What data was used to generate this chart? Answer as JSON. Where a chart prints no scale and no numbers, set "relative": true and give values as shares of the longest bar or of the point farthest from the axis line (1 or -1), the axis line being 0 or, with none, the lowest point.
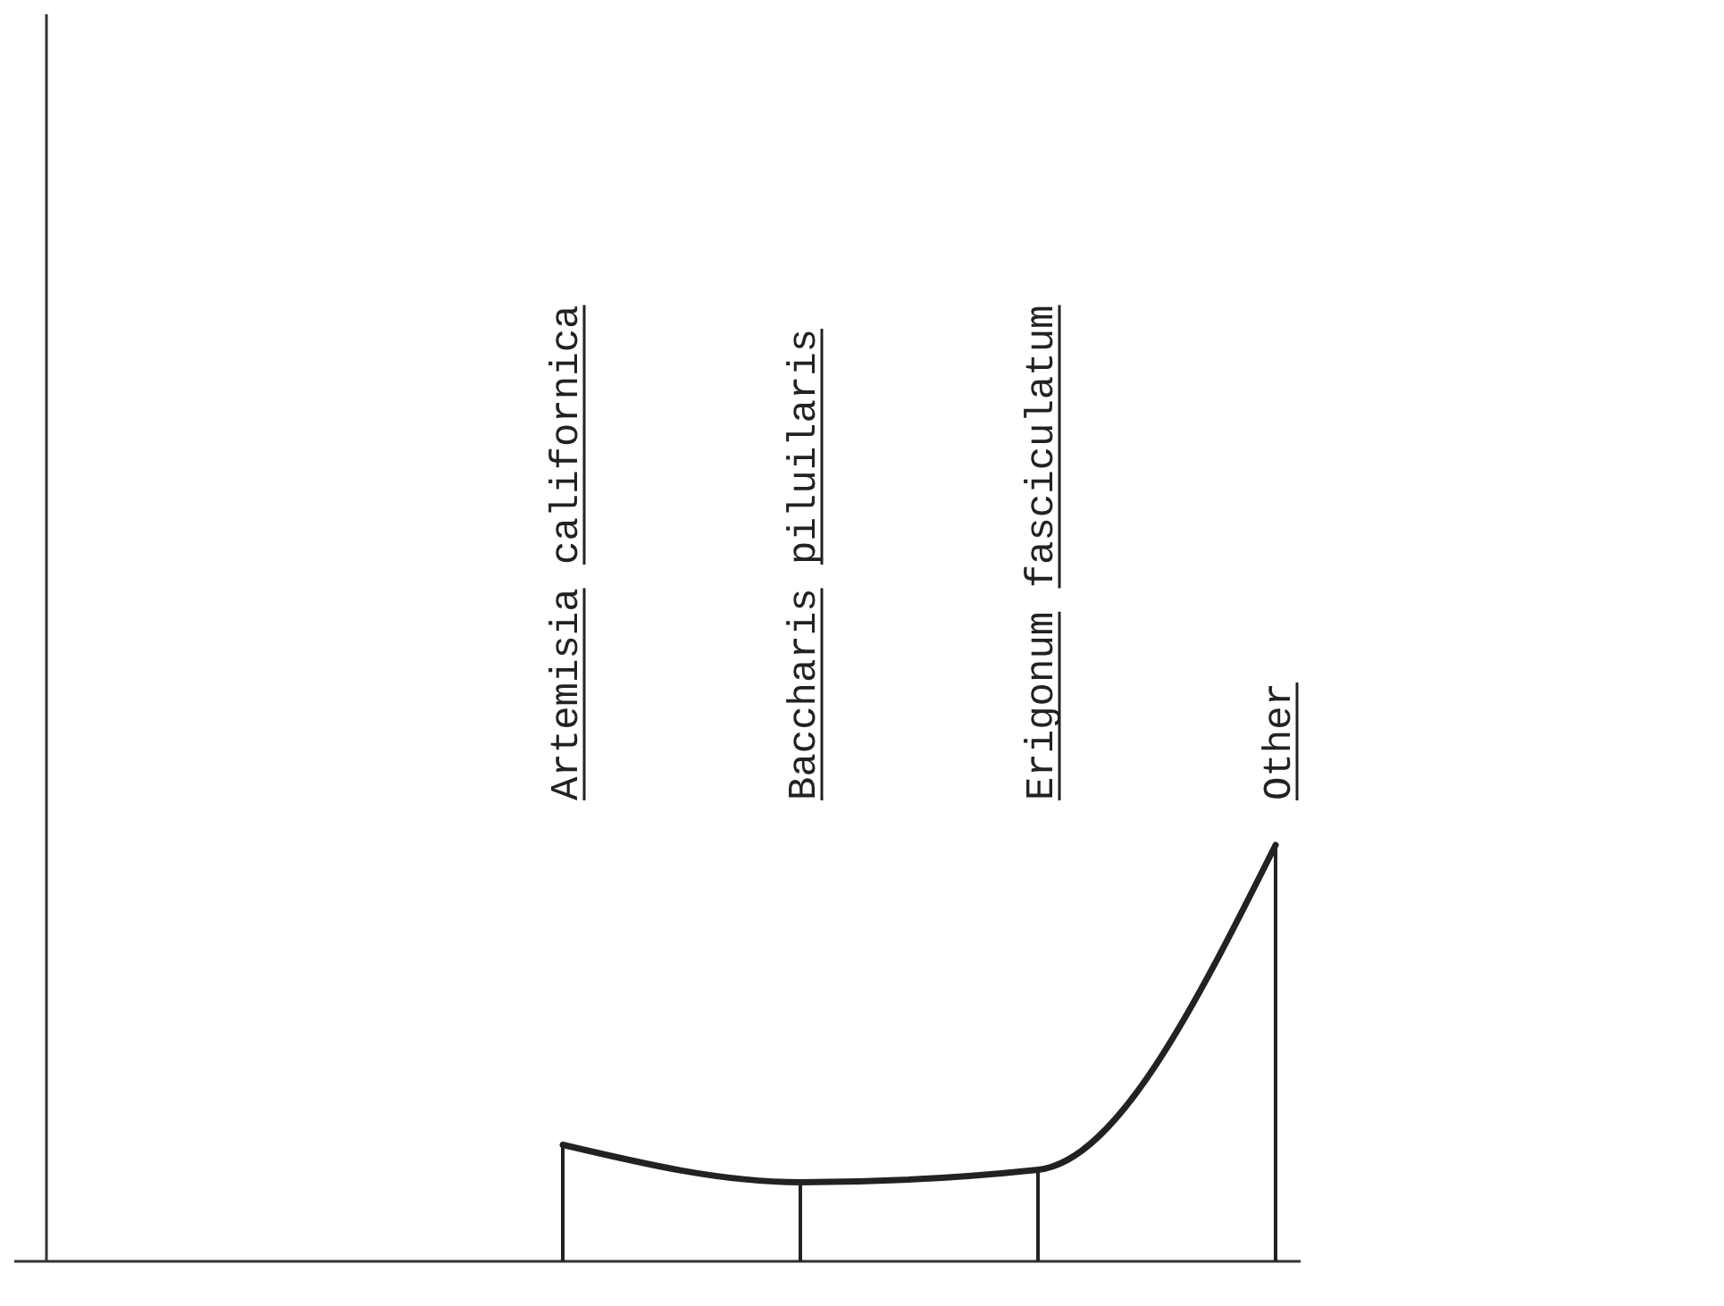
{
  "chart_data": {
    "type": "bar",
    "relative": true,
    "categories": [
      "Artemisia californica",
      "Baccharis piluilaris",
      "Erigonum fasciculatum",
      "Other"
    ],
    "series": [
      {
        "color": "#222222",
        "values": [
          0.28,
          0.19,
          0.22,
          1
        ]
      },
      {
        "type": "line",
        "color": "#222222",
        "values": [
          0.28,
          0.19,
          0.22,
          1
        ]
      }
    ],
    "marker": "none"
  }
}
